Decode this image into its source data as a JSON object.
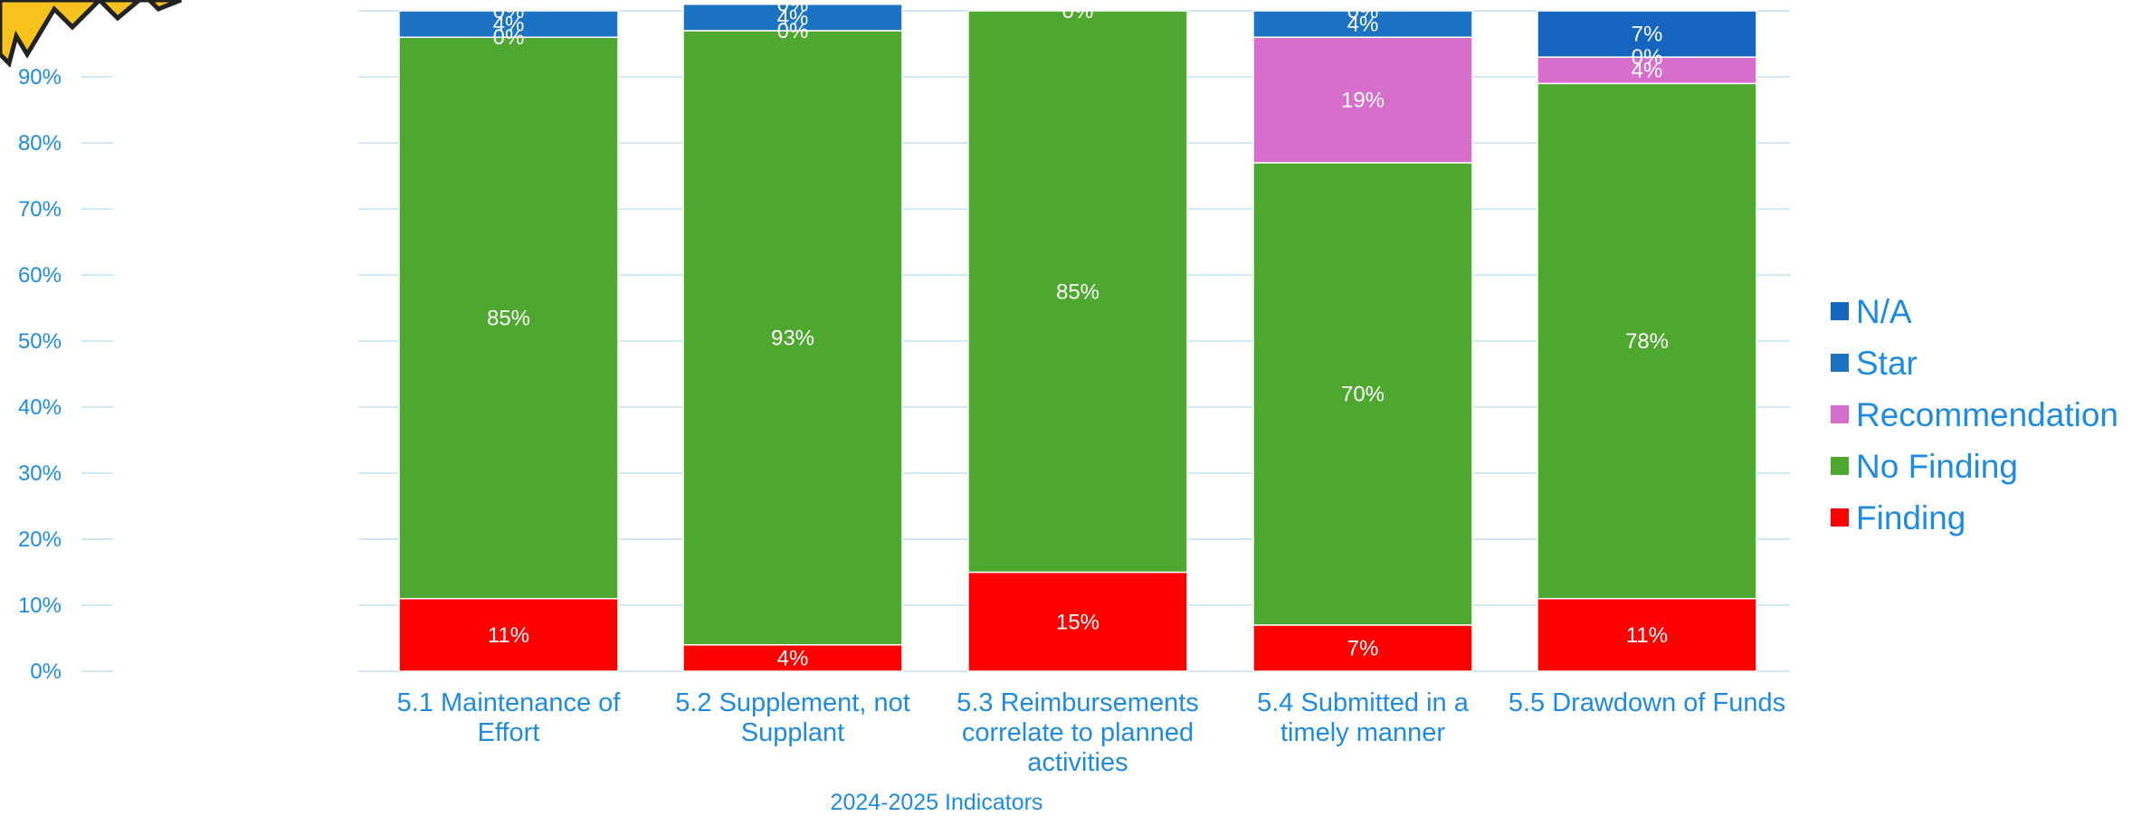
{
  "chart_data": {
    "type": "bar",
    "stacked": true,
    "xlabel": "2024-2025 Indicators",
    "ylabel": "",
    "ylim": [
      0,
      100
    ],
    "y_ticks": [
      "0%",
      "10%",
      "20%",
      "30%",
      "40%",
      "50%",
      "60%",
      "70%",
      "80%",
      "90%"
    ],
    "grid": true,
    "legend": "right",
    "categories": [
      [
        "5.1 Maintenance of",
        "Effort"
      ],
      [
        "5.2 Supplement, not",
        "Supplant"
      ],
      [
        "5.3 Reimbursements",
        "correlate to planned",
        "activities"
      ],
      [
        "5.4 Submitted in a",
        "timely manner"
      ],
      [
        "5.5 Drawdown of Funds"
      ]
    ],
    "series": [
      {
        "name": "Finding",
        "color": "#ff0000",
        "values": [
          11,
          4,
          15,
          7,
          11
        ],
        "labels": [
          "11%",
          "4%",
          "15%",
          "7%",
          "11%"
        ]
      },
      {
        "name": "No Finding",
        "color": "#4ea72e",
        "values": [
          85,
          93,
          85,
          70,
          78
        ],
        "labels": [
          "85%",
          "93%",
          "85%",
          "70%",
          "78%"
        ]
      },
      {
        "name": "Recommendation",
        "color": "#d86ecc",
        "values": [
          0,
          0,
          0,
          19,
          4
        ],
        "labels": [
          "0%",
          "0%",
          "",
          "19%",
          "4%"
        ]
      },
      {
        "name": "Star",
        "color": "#1d73c3",
        "values": [
          4,
          4,
          0,
          4,
          0
        ],
        "labels": [
          "4%",
          "4%",
          "0%",
          "4%",
          "0%"
        ]
      },
      {
        "name": "N/A",
        "color": "#1565c0",
        "values": [
          0,
          0,
          0,
          0,
          7
        ],
        "labels": [
          "0%",
          "0%",
          "",
          "0%",
          "7%"
        ]
      }
    ]
  }
}
